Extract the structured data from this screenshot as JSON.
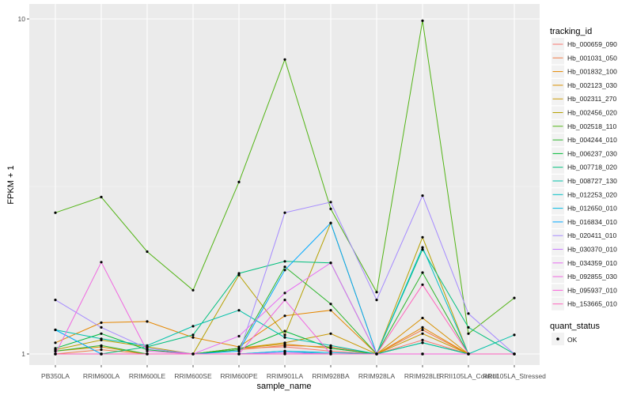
{
  "chart_data": {
    "type": "line",
    "xlabel": "sample_name",
    "ylabel": "FPKM + 1",
    "y_scale": "log10",
    "ylim": [
      1,
      10
    ],
    "y_ticks": [
      {
        "value": 1,
        "label": "1"
      },
      {
        "value": 10,
        "label": "10"
      }
    ],
    "grid": true,
    "legend_position": "right",
    "categories": [
      "PB350LA",
      "RRIM600LA",
      "RRIM600LE",
      "RRIM600SE",
      "RRIM600PE",
      "RRIM901LA",
      "RRIM928BA",
      "RRIM928LA",
      "RRIM928LE",
      "RRII105LA_Control",
      "RRII105LA_Stressed"
    ],
    "tick_labels": [
      "PB350LA",
      "RRIM600LA",
      "RRIM600LE",
      "RRIM600SE",
      "RRIM600PE",
      "RRIM901LA",
      "RRIM928BA",
      "RRIM928LA",
      "RRIM928LE",
      "RRII105LA_Control",
      "RRII105LA_Stressed"
    ],
    "legend_color_title": "tracking_id",
    "legend_shape_title": "quant_status",
    "point_status_label": "OK",
    "series": [
      {
        "name": "Hb_000659_090",
        "color": "#F8766D",
        "values": [
          1.0,
          1.0,
          1.0,
          1.0,
          1.04,
          1.05,
          1.02,
          1.0,
          1.1,
          1.0,
          1.0
        ]
      },
      {
        "name": "Hb_001031_050",
        "color": "#F07E4A",
        "values": [
          1.0,
          1.03,
          1.0,
          1.0,
          1.03,
          1.06,
          1.05,
          1.0,
          1.18,
          1.0,
          1.0
        ]
      },
      {
        "name": "Hb_001832_100",
        "color": "#E58700",
        "values": [
          1.08,
          1.24,
          1.25,
          1.12,
          1.05,
          1.3,
          1.35,
          1.0,
          1.2,
          1.0,
          1.0
        ]
      },
      {
        "name": "Hb_002123_030",
        "color": "#D89000",
        "values": [
          1.02,
          1.05,
          1.0,
          1.0,
          1.04,
          1.07,
          1.04,
          1.0,
          1.28,
          1.0,
          1.0
        ]
      },
      {
        "name": "Hb_002311_270",
        "color": "#C99800",
        "values": [
          1.0,
          1.0,
          1.0,
          1.0,
          1.04,
          1.08,
          1.15,
          1.0,
          1.15,
          1.0,
          1.0
        ]
      },
      {
        "name": "Hb_002456_020",
        "color": "#B5A000",
        "values": [
          1.03,
          1.1,
          1.05,
          1.0,
          1.72,
          1.14,
          2.46,
          1.0,
          2.23,
          1.0,
          1.0
        ]
      },
      {
        "name": "Hb_002518_110",
        "color": "#52B415",
        "values": [
          2.64,
          2.94,
          2.02,
          1.55,
          3.26,
          7.57,
          2.71,
          1.53,
          9.88,
          1.15,
          1.47
        ]
      },
      {
        "name": "Hb_004244_010",
        "color": "#2CB52C",
        "values": [
          1.02,
          1.06,
          1.0,
          1.0,
          1.04,
          1.82,
          1.41,
          1.0,
          1.75,
          1.0,
          1.0
        ]
      },
      {
        "name": "Hb_006237_030",
        "color": "#00BA38",
        "values": [
          1.04,
          1.15,
          1.03,
          1.0,
          1.03,
          1.17,
          1.04,
          1.0,
          1.08,
          1.0,
          1.0
        ]
      },
      {
        "name": "Hb_007718_020",
        "color": "#00BF7D",
        "values": [
          1.0,
          1.0,
          1.05,
          1.14,
          1.74,
          1.89,
          1.87,
          1.0,
          2.05,
          1.2,
          1.0
        ]
      },
      {
        "name": "Hb_008727_130",
        "color": "#00C1A9",
        "values": [
          1.18,
          1.11,
          1.06,
          1.21,
          1.35,
          1.12,
          1.06,
          1.0,
          1.08,
          1.0,
          1.14
        ]
      },
      {
        "name": "Hb_012253_020",
        "color": "#00BFC4",
        "values": [
          1.0,
          1.0,
          1.0,
          1.0,
          1.0,
          1.02,
          1.0,
          1.0,
          2.08,
          1.0,
          1.0
        ]
      },
      {
        "name": "Hb_012650_010",
        "color": "#00B8E5",
        "values": [
          1.0,
          1.0,
          1.0,
          1.0,
          1.0,
          1.02,
          1.01,
          1.0,
          1.0,
          1.0,
          1.0
        ]
      },
      {
        "name": "Hb_016834_010",
        "color": "#00A9FF",
        "values": [
          1.18,
          1.0,
          1.0,
          1.0,
          1.02,
          1.78,
          2.46,
          1.0,
          1.0,
          1.0,
          1.0
        ]
      },
      {
        "name": "Hb_020411_010",
        "color": "#A58AFF",
        "values": [
          1.45,
          1.2,
          1.04,
          1.0,
          1.0,
          2.64,
          2.84,
          1.45,
          2.97,
          1.32,
          1.0
        ]
      },
      {
        "name": "Hb_030370_010",
        "color": "#C77CFF",
        "values": [
          1.0,
          1.0,
          1.0,
          1.0,
          1.0,
          1.01,
          1.0,
          1.0,
          1.0,
          1.0,
          1.0
        ]
      },
      {
        "name": "Hb_034359_010",
        "color": "#E76BF3",
        "values": [
          1.0,
          1.0,
          1.0,
          1.0,
          1.13,
          1.52,
          1.87,
          1.0,
          1.0,
          1.0,
          1.0
        ]
      },
      {
        "name": "Hb_092855_030",
        "color": "#F066E0",
        "values": [
          1.0,
          1.88,
          1.02,
          1.0,
          1.0,
          1.45,
          1.0,
          1.0,
          1.0,
          1.0,
          1.0
        ]
      },
      {
        "name": "Hb_095937_010",
        "color": "#FA62DB",
        "values": [
          1.0,
          1.0,
          1.0,
          1.0,
          1.0,
          1.0,
          1.0,
          1.0,
          1.0,
          1.0,
          1.0
        ]
      },
      {
        "name": "Hb_153665_010",
        "color": "#FF62BC",
        "values": [
          1.0,
          1.0,
          1.0,
          1.0,
          1.0,
          1.0,
          1.0,
          1.0,
          1.61,
          1.0,
          1.0
        ]
      }
    ]
  }
}
